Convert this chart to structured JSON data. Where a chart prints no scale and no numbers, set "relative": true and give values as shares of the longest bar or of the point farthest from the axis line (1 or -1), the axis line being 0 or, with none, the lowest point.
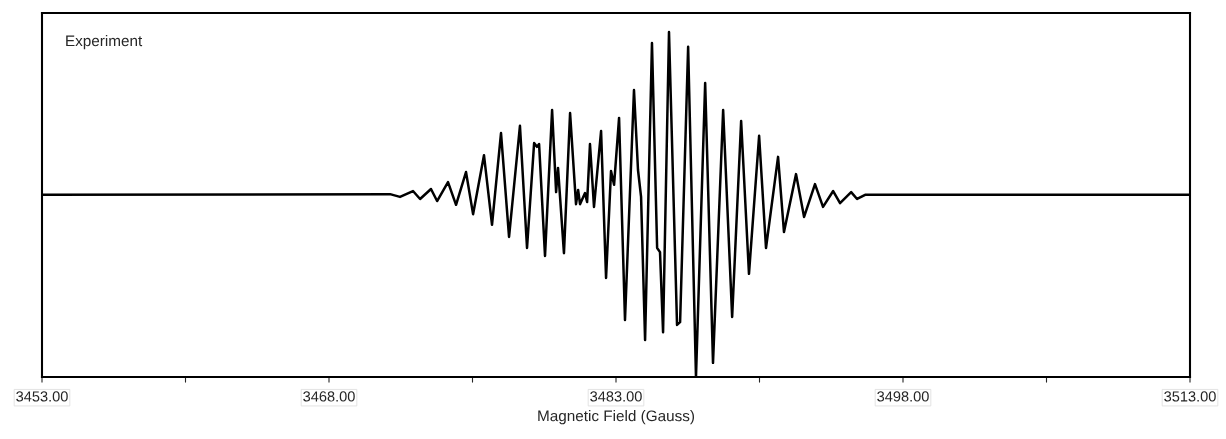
{
  "chart_data": {
    "type": "line",
    "relative": true,
    "xlabel": "Magnetic Field (Gauss)",
    "annotations": [
      "Experiment"
    ],
    "xlim": [
      3453,
      3513
    ],
    "xticks": [
      {
        "value": 3453,
        "label": "3453.00"
      },
      {
        "value": 3460.5,
        "label": null
      },
      {
        "value": 3468,
        "label": "3468.00"
      },
      {
        "value": 3475.5,
        "label": null
      },
      {
        "value": 3483,
        "label": "3483.00"
      },
      {
        "value": 3490.5,
        "label": null
      },
      {
        "value": 3498,
        "label": "3498.00"
      },
      {
        "value": 3505.5,
        "label": null
      },
      {
        "value": 3513,
        "label": "3513.00"
      }
    ],
    "tick_labels": "x",
    "grid": false,
    "legend": false,
    "marker": "none",
    "line_style": "solid",
    "series": [
      {
        "color": "#000000",
        "x": [
          3453.0,
          3471.19,
          3471.71,
          3472.39,
          3472.76,
          3473.33,
          3473.65,
          3474.22,
          3474.64,
          3475.16,
          3475.53,
          3476.1,
          3476.52,
          3476.99,
          3477.41,
          3477.98,
          3478.35,
          3478.72,
          3478.87,
          3478.98,
          3479.29,
          3479.66,
          3479.87,
          3479.97,
          3480.28,
          3480.6,
          3480.91,
          3481.02,
          3481.12,
          3481.38,
          3481.49,
          3481.64,
          3481.85,
          3482.22,
          3482.48,
          3482.74,
          3482.9,
          3483.16,
          3483.47,
          3483.94,
          3484.15,
          3484.31,
          3484.52,
          3484.88,
          3485.15,
          3485.3,
          3485.46,
          3485.77,
          3486.19,
          3486.35,
          3486.77,
          3487.18,
          3487.66,
          3488.07,
          3488.6,
          3489.07,
          3489.54,
          3489.95,
          3490.48,
          3490.84,
          3491.47,
          3491.78,
          3492.41,
          3492.83,
          3493.4,
          3493.82,
          3494.35,
          3494.71,
          3495.29,
          3495.6,
          3496.02,
          3513.0
        ],
        "values": [
          0.528,
          0.53,
          0.522,
          0.539,
          0.516,
          0.545,
          0.51,
          0.565,
          0.499,
          0.594,
          0.472,
          0.643,
          0.441,
          0.707,
          0.406,
          0.728,
          0.374,
          0.678,
          0.667,
          0.675,
          0.351,
          0.774,
          0.536,
          0.606,
          0.359,
          0.765,
          0.501,
          0.542,
          0.501,
          0.533,
          0.507,
          0.675,
          0.493,
          0.713,
          0.287,
          0.597,
          0.557,
          0.751,
          0.165,
          0.832,
          0.6,
          0.522,
          0.107,
          0.968,
          0.374,
          0.362,
          0.13,
          1.0,
          0.151,
          0.159,
          0.957,
          0.0,
          0.852,
          0.041,
          0.774,
          0.174,
          0.742,
          0.299,
          0.699,
          0.374,
          0.638,
          0.42,
          0.588,
          0.464,
          0.559,
          0.493,
          0.539,
          0.504,
          0.536,
          0.516,
          0.528,
          0.528
        ]
      }
    ]
  }
}
